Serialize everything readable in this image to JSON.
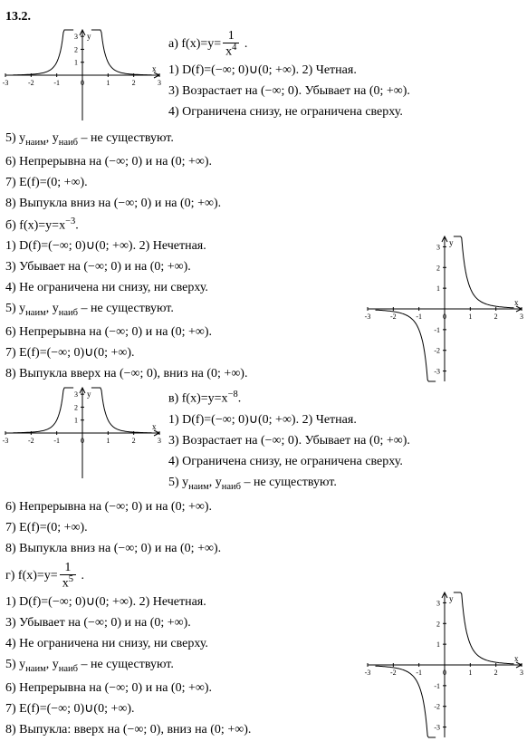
{
  "header": "13.2.",
  "chart_common": {
    "xmin": -3,
    "xmax": 3,
    "ymin": -3.5,
    "ymax": 3.5,
    "xticks": [
      -3,
      -2,
      -1,
      0,
      1,
      2,
      3
    ],
    "axis_color": "#000000",
    "background_color": "#ffffff",
    "curve_color": "#000000",
    "line_width": 1
  },
  "a": {
    "formula_prefix": "а) f(x)=y=",
    "frac_num": "1",
    "frac_den": "x",
    "exp": "4",
    "formula_suffix": " .",
    "lines_right": [
      "1) D(f)=(−∞; 0)∪(0; +∞). 2) Четная.",
      "3) Возрастает на (−∞; 0). Убывает на (0; +∞).",
      "4) Ограничена снизу, не ограничена сверху."
    ],
    "lines_below": [
      "5) yₙₐᵢₘ, yₙₐᵢб – не существуют.",
      "6) Непрерывна на (−∞; 0) и на (0; +∞).",
      "7) E(f)=(0; +∞).",
      "8) Выпукла вниз на (−∞; 0) и на (0; +∞)."
    ],
    "chart": {
      "type": "even",
      "width": 170,
      "height": 100
    }
  },
  "b": {
    "formula": "б) f(x)=y=x⁻³.",
    "lines": [
      "1) D(f)=(−∞; 0)∪(0; +∞). 2) Нечетная.",
      "3) Убывает на (−∞; 0) и на (0; +∞).",
      "4) Не ограничена ни снизу, ни сверху.",
      "5) yₙₐᵢₘ, yₙₐᵢб – не существуют.",
      "6) Непрерывна на (−∞; 0) и на (0; +∞).",
      "7) E(f)=(−∞; 0)∪(0; +∞).",
      "8) Выпукла вверх на (−∞; 0), вниз на (0; +∞)."
    ],
    "chart": {
      "type": "odd",
      "width": 170,
      "height": 160
    }
  },
  "v": {
    "formula": "в) f(x)=y=x⁻⁸.",
    "lines_right": [
      "1) D(f)=(−∞; 0)∪(0; +∞). 2) Четная.",
      "3) Возрастает на (−∞; 0). Убывает на (0; +∞).",
      "4) Ограничена снизу, не ограничена сверху.",
      "5) yₙₐᵢₘ, yₙₐᵢб – не существуют."
    ],
    "lines_below": [
      "6) Непрерывна на (−∞; 0) и на (0; +∞).",
      "7) E(f)=(0; +∞).",
      "8) Выпукла вниз на (−∞; 0) и на (0; +∞)."
    ],
    "chart": {
      "type": "even",
      "width": 170,
      "height": 100
    }
  },
  "g": {
    "formula_prefix": "г) f(x)=y=",
    "frac_num": "1",
    "frac_den": "x",
    "exp": "5",
    "formula_suffix": " .",
    "lines": [
      "1) D(f)=(−∞; 0)∪(0; +∞). 2) Нечетная.",
      "3) Убывает на (−∞; 0) и на (0; +∞).",
      "4) Не ограничена ни снизу, ни сверху.",
      "5) yₙₐᵢₘ, yₙₐᵢб – не существуют.",
      "6) Непрерывна на (−∞; 0) и на (0; +∞).",
      "7) E(f)=(−∞; 0)∪(0; +∞).",
      "8) Выпукла: вверх на (−∞; 0), вниз на (0; +∞)."
    ],
    "chart": {
      "type": "odd",
      "width": 170,
      "height": 160
    }
  }
}
